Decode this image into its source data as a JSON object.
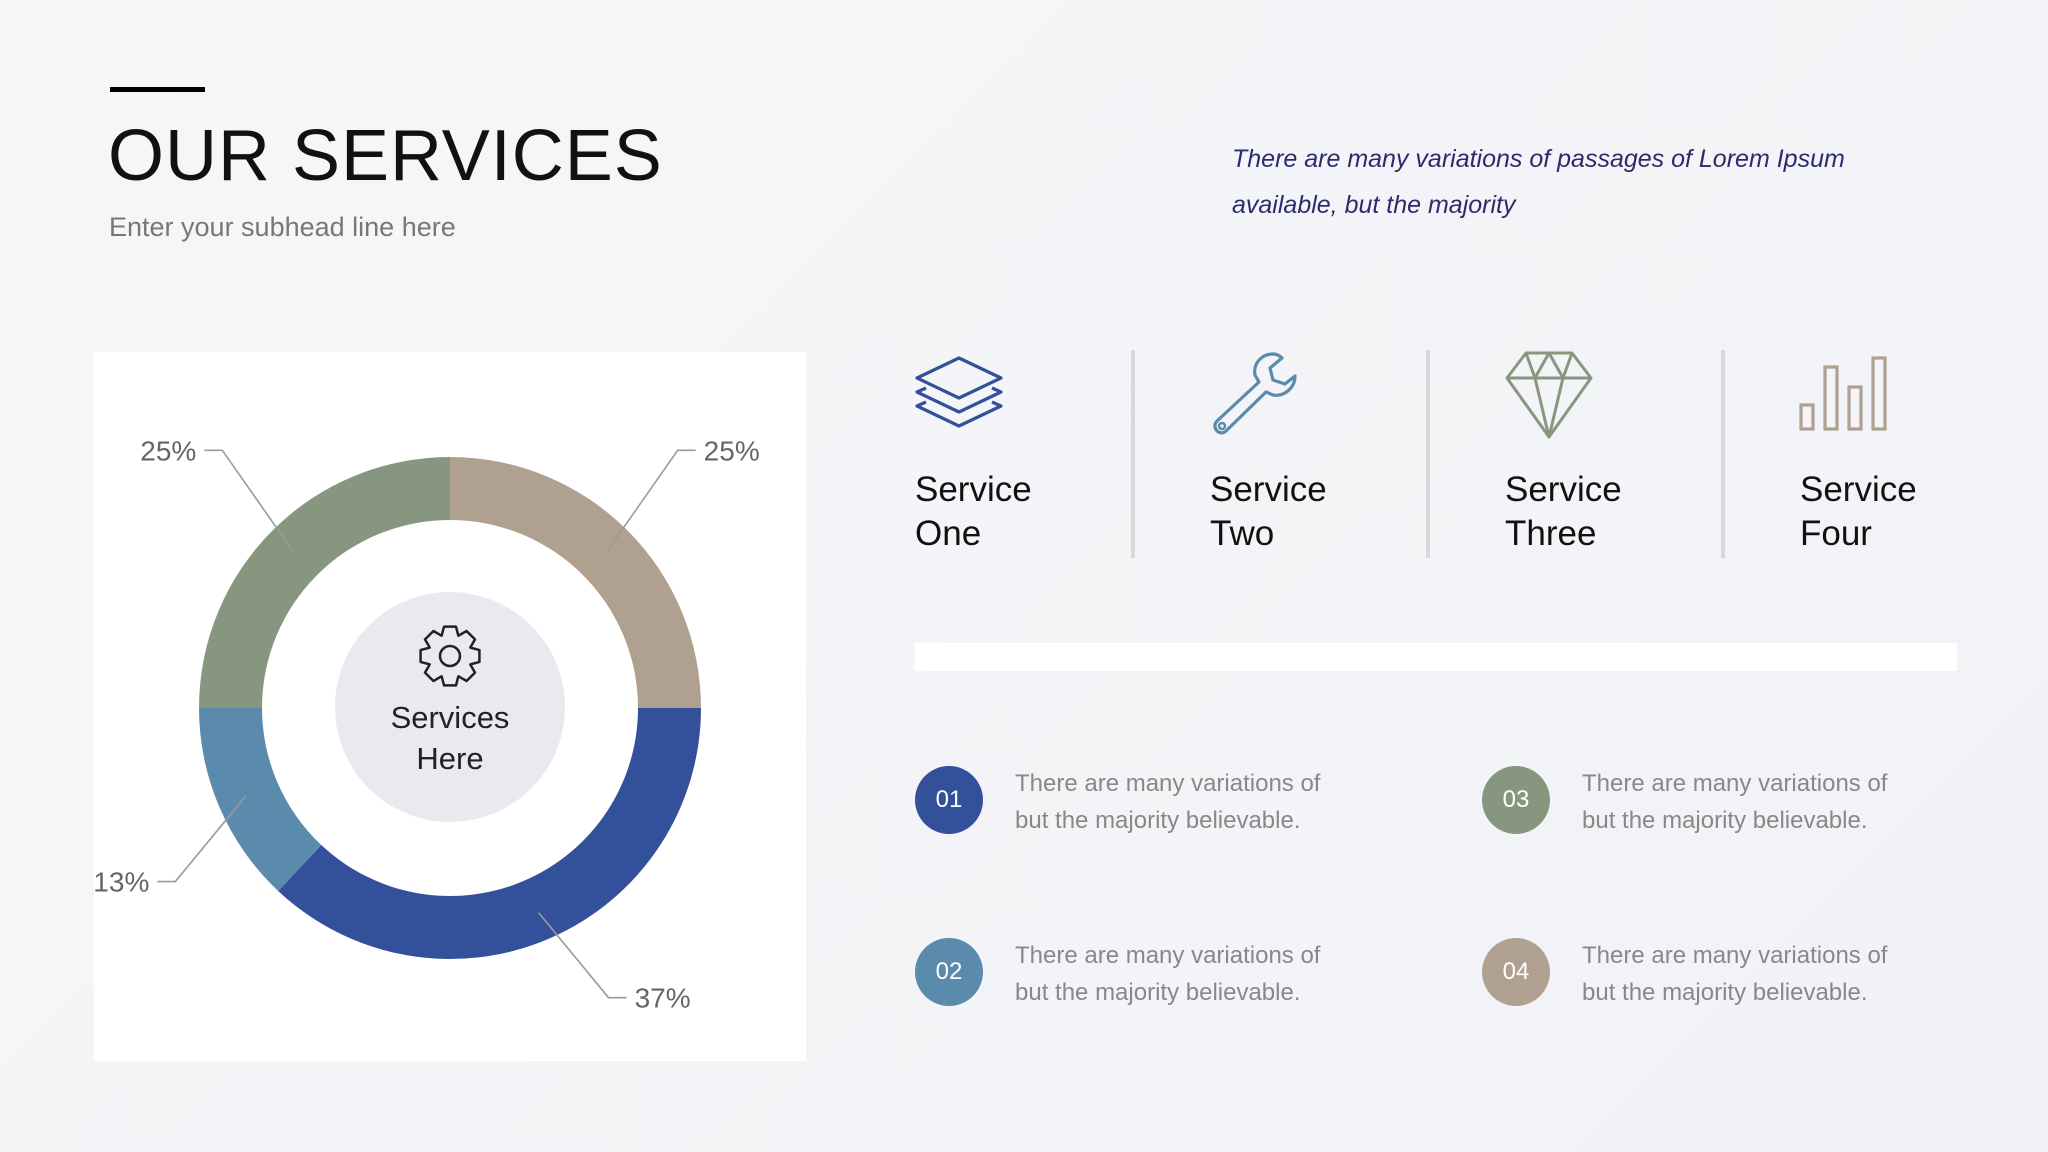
{
  "header": {
    "title": "OUR SERVICES",
    "subhead": "Enter your subhead line here",
    "intro": "There are many variations of passages of Lorem Ipsum available, but the majority"
  },
  "colors": {
    "navy": "#33509a",
    "steel": "#5a8aac",
    "sage": "#87977f",
    "taupe": "#b0a08f"
  },
  "chart_data": {
    "type": "pie",
    "variant": "donut",
    "center_label_line1": "Services",
    "center_label_line2": "Here",
    "center_icon": "gear-icon",
    "slices": [
      {
        "label": "25%",
        "value": 25,
        "color": "#b0a08f"
      },
      {
        "label": "37%",
        "value": 37,
        "color": "#33509a"
      },
      {
        "label": "13%",
        "value": 13,
        "color": "#5a8aac"
      },
      {
        "label": "25%",
        "value": 25,
        "color": "#87977f"
      }
    ]
  },
  "services": [
    {
      "line1": "Service",
      "line2": "One",
      "icon": "layers-icon",
      "color": "#33509a"
    },
    {
      "line1": "Service",
      "line2": "Two",
      "icon": "wrench-icon",
      "color": "#5a8aac"
    },
    {
      "line1": "Service",
      "line2": "Three",
      "icon": "diamond-icon",
      "color": "#87977f"
    },
    {
      "line1": "Service",
      "line2": "Four",
      "icon": "bar-chart-icon",
      "color": "#b0a08f"
    }
  ],
  "items": [
    {
      "number": "01",
      "line1": "There are many variations of",
      "line2": "but the majority believable.",
      "color": "#33509a"
    },
    {
      "number": "02",
      "line1": "There are many variations of",
      "line2": "but the majority believable.",
      "color": "#5a8aac"
    },
    {
      "number": "03",
      "line1": "There are many variations of",
      "line2": "but the majority believable.",
      "color": "#87977f"
    },
    {
      "number": "04",
      "line1": "There are many variations of",
      "line2": "but the majority believable.",
      "color": "#b0a08f"
    }
  ]
}
